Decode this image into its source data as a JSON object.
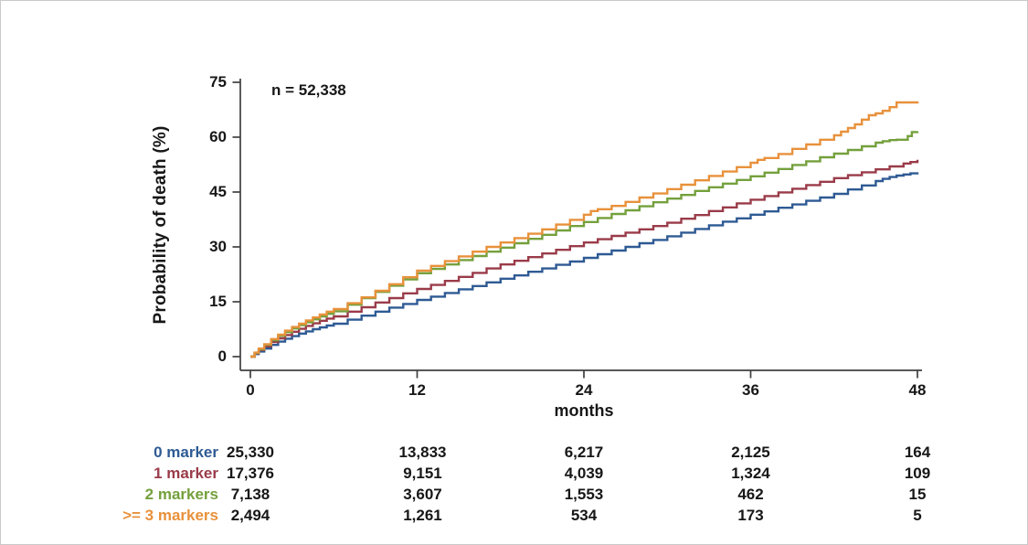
{
  "chart_data": {
    "type": "line",
    "subtype": "cumulative-incidence-step",
    "annotation": "n = 52,338",
    "xlabel": "months",
    "ylabel": "Probability of death (%)",
    "xlim": [
      0,
      48
    ],
    "ylim": [
      0,
      75
    ],
    "xticks": [
      0,
      12,
      24,
      36,
      48
    ],
    "yticks": [
      0,
      15,
      30,
      45,
      60,
      75
    ],
    "grid": false,
    "legend_position": "risk-table-left",
    "axis_color": "#3f3f3f",
    "series": [
      {
        "name": "0 marker",
        "color": "#2E5A94",
        "points": [
          [
            0,
            0
          ],
          [
            0.3,
            0.7
          ],
          [
            0.6,
            1.4
          ],
          [
            1,
            2.2
          ],
          [
            1.5,
            3.2
          ],
          [
            2,
            4.1
          ],
          [
            2.5,
            4.9
          ],
          [
            3,
            5.6
          ],
          [
            3.5,
            6.3
          ],
          [
            4,
            6.9
          ],
          [
            4.5,
            7.5
          ],
          [
            5,
            8.0
          ],
          [
            5.5,
            8.5
          ],
          [
            6,
            9.0
          ],
          [
            7,
            10.1
          ],
          [
            8,
            11.2
          ],
          [
            9,
            12.3
          ],
          [
            10,
            13.4
          ],
          [
            11,
            14.4
          ],
          [
            12,
            15.5
          ],
          [
            13,
            16.4
          ],
          [
            14,
            17.4
          ],
          [
            15,
            18.4
          ],
          [
            16,
            19.3
          ],
          [
            17,
            20.3
          ],
          [
            18,
            21.3
          ],
          [
            19,
            22.2
          ],
          [
            20,
            23.2
          ],
          [
            21,
            24.1
          ],
          [
            22,
            25.1
          ],
          [
            23,
            26.0
          ],
          [
            24,
            27.0
          ],
          [
            25,
            28.0
          ],
          [
            26,
            29.0
          ],
          [
            27,
            30.0
          ],
          [
            28,
            31.0
          ],
          [
            29,
            31.9
          ],
          [
            30,
            32.9
          ],
          [
            31,
            33.9
          ],
          [
            32,
            34.9
          ],
          [
            33,
            35.9
          ],
          [
            34,
            36.9
          ],
          [
            35,
            37.8
          ],
          [
            36,
            38.8
          ],
          [
            37,
            39.7
          ],
          [
            38,
            40.7
          ],
          [
            39,
            41.6
          ],
          [
            40,
            42.6
          ],
          [
            41,
            43.5
          ],
          [
            42,
            44.5
          ],
          [
            43,
            45.7
          ],
          [
            44,
            46.8
          ],
          [
            45,
            48.0
          ],
          [
            45.5,
            48.6
          ],
          [
            46,
            49.1
          ],
          [
            46.5,
            49.5
          ],
          [
            47,
            49.8
          ],
          [
            47.5,
            50.1
          ],
          [
            48,
            50.4
          ]
        ]
      },
      {
        "name": "1 marker",
        "color": "#9A3B49",
        "points": [
          [
            0,
            0
          ],
          [
            0.3,
            0.9
          ],
          [
            0.6,
            1.8
          ],
          [
            1,
            2.8
          ],
          [
            1.5,
            4.0
          ],
          [
            2,
            5.0
          ],
          [
            2.5,
            5.9
          ],
          [
            3,
            6.8
          ],
          [
            3.5,
            7.6
          ],
          [
            4,
            8.4
          ],
          [
            4.5,
            9.1
          ],
          [
            5,
            9.8
          ],
          [
            5.5,
            10.4
          ],
          [
            6,
            11.0
          ],
          [
            7,
            12.3
          ],
          [
            8,
            13.5
          ],
          [
            9,
            14.8
          ],
          [
            10,
            16.0
          ],
          [
            11,
            17.3
          ],
          [
            12,
            18.5
          ],
          [
            13,
            19.6
          ],
          [
            14,
            20.7
          ],
          [
            15,
            21.8
          ],
          [
            16,
            22.9
          ],
          [
            17,
            24.1
          ],
          [
            18,
            25.2
          ],
          [
            19,
            26.2
          ],
          [
            20,
            27.2
          ],
          [
            21,
            28.2
          ],
          [
            22,
            29.2
          ],
          [
            23,
            30.2
          ],
          [
            24,
            31.2
          ],
          [
            25,
            32.1
          ],
          [
            26,
            33.0
          ],
          [
            27,
            33.9
          ],
          [
            28,
            34.8
          ],
          [
            29,
            35.7
          ],
          [
            30,
            36.6
          ],
          [
            31,
            37.7
          ],
          [
            32,
            38.7
          ],
          [
            33,
            39.8
          ],
          [
            34,
            40.8
          ],
          [
            35,
            41.9
          ],
          [
            36,
            42.9
          ],
          [
            37,
            43.9
          ],
          [
            38,
            44.9
          ],
          [
            39,
            45.9
          ],
          [
            40,
            46.9
          ],
          [
            41,
            47.8
          ],
          [
            42,
            48.8
          ],
          [
            43,
            49.6
          ],
          [
            44,
            50.4
          ],
          [
            45,
            51.2
          ],
          [
            46,
            52.0
          ],
          [
            47,
            52.8
          ],
          [
            47.5,
            53.2
          ],
          [
            48,
            53.8
          ]
        ]
      },
      {
        "name": "2 markers",
        "color": "#74A03C",
        "points": [
          [
            0,
            0
          ],
          [
            0.3,
            1.0
          ],
          [
            0.6,
            2.0
          ],
          [
            1,
            3.2
          ],
          [
            1.5,
            4.5
          ],
          [
            2,
            5.7
          ],
          [
            2.5,
            6.7
          ],
          [
            3,
            7.7
          ],
          [
            3.5,
            8.6
          ],
          [
            4,
            9.4
          ],
          [
            4.5,
            10.2
          ],
          [
            5,
            11.0
          ],
          [
            5.5,
            11.7
          ],
          [
            6,
            12.4
          ],
          [
            7,
            14.2
          ],
          [
            8,
            16.0
          ],
          [
            9,
            17.7
          ],
          [
            10,
            19.4
          ],
          [
            11,
            21.1
          ],
          [
            12,
            22.8
          ],
          [
            13,
            24.0
          ],
          [
            14,
            25.2
          ],
          [
            15,
            26.4
          ],
          [
            16,
            27.5
          ],
          [
            17,
            28.7
          ],
          [
            18,
            29.8
          ],
          [
            19,
            31.0
          ],
          [
            20,
            32.2
          ],
          [
            21,
            33.3
          ],
          [
            22,
            34.5
          ],
          [
            23,
            35.7
          ],
          [
            24,
            36.8
          ],
          [
            25,
            37.9
          ],
          [
            26,
            39.0
          ],
          [
            27,
            40.0
          ],
          [
            28,
            41.1
          ],
          [
            29,
            42.2
          ],
          [
            30,
            43.2
          ],
          [
            31,
            44.2
          ],
          [
            32,
            45.3
          ],
          [
            33,
            46.3
          ],
          [
            34,
            47.3
          ],
          [
            35,
            48.3
          ],
          [
            36,
            49.3
          ],
          [
            37,
            50.3
          ],
          [
            38,
            51.3
          ],
          [
            39,
            52.4
          ],
          [
            40,
            53.4
          ],
          [
            41,
            54.5
          ],
          [
            42,
            55.5
          ],
          [
            43,
            56.5
          ],
          [
            44,
            57.5
          ],
          [
            45,
            58.5
          ],
          [
            45.5,
            58.9
          ],
          [
            46,
            59.2
          ],
          [
            46.5,
            59.3
          ],
          [
            47,
            59.3
          ],
          [
            47.3,
            60.3
          ],
          [
            47.6,
            61.4
          ],
          [
            48,
            61.6
          ]
        ]
      },
      {
        "name": ">= 3 markers",
        "color": "#E8913B",
        "points": [
          [
            0,
            0
          ],
          [
            0.3,
            1.1
          ],
          [
            0.6,
            2.2
          ],
          [
            1,
            3.4
          ],
          [
            1.5,
            4.8
          ],
          [
            2,
            6.0
          ],
          [
            2.5,
            7.1
          ],
          [
            3,
            8.1
          ],
          [
            3.5,
            9.0
          ],
          [
            4,
            9.9
          ],
          [
            4.5,
            10.7
          ],
          [
            5,
            11.5
          ],
          [
            5.5,
            12.3
          ],
          [
            6,
            13.0
          ],
          [
            7,
            14.6
          ],
          [
            8,
            16.2
          ],
          [
            9,
            18.0
          ],
          [
            10,
            19.8
          ],
          [
            11,
            21.7
          ],
          [
            12,
            23.5
          ],
          [
            13,
            24.8
          ],
          [
            14,
            26.1
          ],
          [
            15,
            27.4
          ],
          [
            16,
            28.7
          ],
          [
            17,
            30.0
          ],
          [
            18,
            31.2
          ],
          [
            19,
            32.4
          ],
          [
            20,
            33.6
          ],
          [
            21,
            34.8
          ],
          [
            22,
            36.1
          ],
          [
            23,
            37.4
          ],
          [
            24,
            38.8
          ],
          [
            24.5,
            39.8
          ],
          [
            25,
            40.3
          ],
          [
            26,
            41.2
          ],
          [
            27,
            42.3
          ],
          [
            28,
            43.5
          ],
          [
            29,
            44.6
          ],
          [
            30,
            45.8
          ],
          [
            31,
            47.0
          ],
          [
            32,
            48.2
          ],
          [
            33,
            49.4
          ],
          [
            34,
            50.6
          ],
          [
            35,
            51.8
          ],
          [
            36,
            53.0
          ],
          [
            36.5,
            53.8
          ],
          [
            37,
            54.3
          ],
          [
            38,
            55.4
          ],
          [
            39,
            56.8
          ],
          [
            40,
            58.0
          ],
          [
            41,
            59.3
          ],
          [
            42,
            60.5
          ],
          [
            42.5,
            61.5
          ],
          [
            43,
            62.5
          ],
          [
            43.5,
            63.5
          ],
          [
            44,
            64.8
          ],
          [
            44.5,
            66.0
          ],
          [
            45,
            66.5
          ],
          [
            45.5,
            67.2
          ],
          [
            46,
            68.2
          ],
          [
            46.5,
            69.5
          ],
          [
            47,
            69.5
          ],
          [
            47.5,
            69.5
          ],
          [
            48,
            69.8
          ]
        ]
      }
    ],
    "risk_table": {
      "columns_months": [
        0,
        12,
        24,
        36,
        48
      ],
      "rows": [
        {
          "label": "0 marker",
          "color": "#2E5A94",
          "values": [
            "25,330",
            "13,833",
            "6,217",
            "2,125",
            "164"
          ]
        },
        {
          "label": "1 marker",
          "color": "#9A3B49",
          "values": [
            "17,376",
            "9,151",
            "4,039",
            "1,324",
            "109"
          ]
        },
        {
          "label": "2 markers",
          "color": "#74A03C",
          "values": [
            "7,138",
            "3,607",
            "1,553",
            "462",
            "15"
          ]
        },
        {
          "label": ">= 3 markers",
          "color": "#E8913B",
          "values": [
            "2,494",
            "1,261",
            "534",
            "173",
            "5"
          ]
        }
      ]
    }
  }
}
